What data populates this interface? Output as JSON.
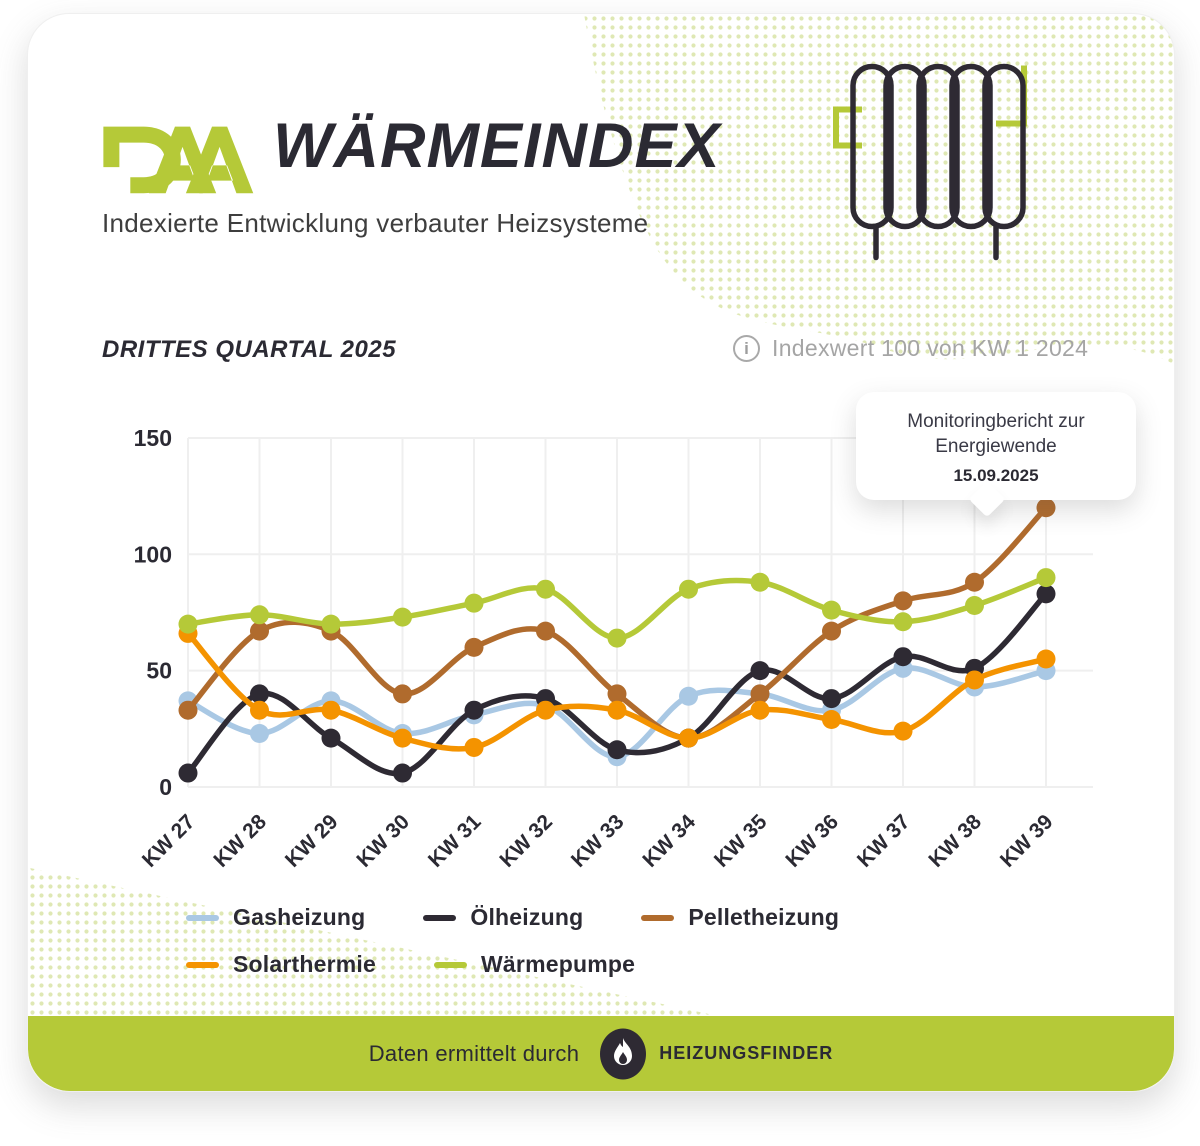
{
  "header": {
    "logo": "DAA",
    "title": "WÄRMEINDEX",
    "subtitle": "Indexierte Entwicklung verbauter Heizsysteme"
  },
  "section": {
    "title": "DRITTES QUARTAL 2025",
    "index_note": "Indexwert 100 von KW 1 2024"
  },
  "tooltip": {
    "line1": "Monitoringbericht zur",
    "line2": "Energiewende",
    "date": "15.09.2025"
  },
  "chart_data": {
    "type": "line",
    "title": "DRITTES QUARTAL 2025",
    "categories": [
      "KW 27",
      "KW 28",
      "KW 29",
      "KW 30",
      "KW 31",
      "KW 32",
      "KW 33",
      "KW 34",
      "KW 35",
      "KW 36",
      "KW 37",
      "KW 38",
      "KW 39"
    ],
    "series": [
      {
        "name": "Gasheizung",
        "color": "#a9c8e4",
        "values": [
          37,
          23,
          37,
          23,
          31,
          35,
          13,
          39,
          40,
          33,
          51,
          43,
          50
        ]
      },
      {
        "name": "Ölheizung",
        "color": "#2e2a33",
        "values": [
          6,
          40,
          21,
          6,
          33,
          38,
          16,
          21,
          50,
          38,
          56,
          51,
          83
        ]
      },
      {
        "name": "Pelletheizung",
        "color": "#b06b2d",
        "values": [
          33,
          67,
          67,
          40,
          60,
          67,
          40,
          21,
          40,
          67,
          80,
          88,
          120
        ]
      },
      {
        "name": "Solarthermie",
        "color": "#f49300",
        "values": [
          66,
          33,
          33,
          21,
          17,
          33,
          33,
          21,
          33,
          29,
          24,
          46,
          55
        ]
      },
      {
        "name": "Wärmepumpe",
        "color": "#b5c938",
        "values": [
          70,
          74,
          70,
          73,
          79,
          85,
          64,
          85,
          88,
          76,
          71,
          78,
          90
        ]
      }
    ],
    "ylim": [
      0,
      150
    ],
    "yticks": [
      0,
      50,
      100,
      150
    ],
    "grid": true,
    "legend_position": "bottom",
    "annotation": {
      "text": "Monitoringbericht zur Energiewende",
      "date": "15.09.2025",
      "near_category": "KW 38"
    }
  },
  "footer": {
    "text": "Daten ermittelt durch",
    "brand": "HEIZUNGSFINDER"
  },
  "colors": {
    "accent_lime": "#b5c938",
    "dark": "#2b2a33",
    "grey_text": "#a5a5a5",
    "gridline": "#efefef",
    "dots_pattern": "#dfe8b4"
  }
}
